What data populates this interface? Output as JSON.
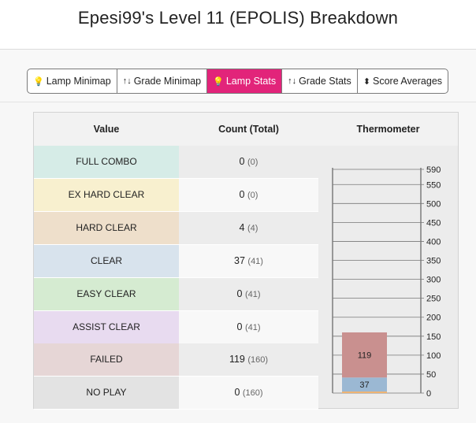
{
  "header": {
    "title": "Epesi99's Level 11 (EPOLIS) Breakdown"
  },
  "tabs": [
    {
      "icon": "💡",
      "label": "Lamp Minimap",
      "active": false
    },
    {
      "icon": "↑↓",
      "label": "Grade Minimap",
      "active": false
    },
    {
      "icon": "💡",
      "label": "Lamp Stats",
      "active": true
    },
    {
      "icon": "↑↓",
      "label": "Grade Stats",
      "active": false
    },
    {
      "icon": "⬍",
      "label": "Score Averages",
      "active": false
    }
  ],
  "table": {
    "headers": {
      "value": "Value",
      "count": "Count (Total)",
      "thermometer": "Thermometer"
    },
    "rows": [
      {
        "lamp": "FULL COMBO",
        "count": "0",
        "total": "(0)",
        "color": "#d6ece7",
        "count_bg": "#ececec"
      },
      {
        "lamp": "EX HARD CLEAR",
        "count": "0",
        "total": "(0)",
        "color": "#f8f0cf",
        "count_bg": "#f8f8f8"
      },
      {
        "lamp": "HARD CLEAR",
        "count": "4",
        "total": "(4)",
        "color": "#eedfcb",
        "count_bg": "#ececec"
      },
      {
        "lamp": "CLEAR",
        "count": "37",
        "total": "(41)",
        "color": "#d8e3ed",
        "count_bg": "#f8f8f8"
      },
      {
        "lamp": "EASY CLEAR",
        "count": "0",
        "total": "(41)",
        "color": "#d5ebd1",
        "count_bg": "#ececec"
      },
      {
        "lamp": "ASSIST CLEAR",
        "count": "0",
        "total": "(41)",
        "color": "#e8dbf0",
        "count_bg": "#f8f8f8"
      },
      {
        "lamp": "FAILED",
        "count": "119",
        "total": "(160)",
        "color": "#e6d6d6",
        "count_bg": "#ececec"
      },
      {
        "lamp": "NO PLAY",
        "count": "0",
        "total": "(160)",
        "color": "#e3e3e3",
        "count_bg": "#f8f8f8"
      }
    ]
  },
  "chart_data": {
    "type": "bar",
    "title": "",
    "xlabel": "",
    "ylabel": "",
    "ylim": [
      0,
      590
    ],
    "ticks": [
      0,
      50,
      100,
      150,
      200,
      250,
      300,
      350,
      400,
      450,
      500,
      550,
      590
    ],
    "tick_labels": [
      "0",
      "50",
      "100",
      "150",
      "200",
      "250",
      "300",
      "350",
      "400",
      "450",
      "500",
      "550",
      "590"
    ],
    "stack": [
      {
        "name": "HARD CLEAR",
        "value": 4,
        "label": "",
        "color": "#f0b26e"
      },
      {
        "name": "CLEAR",
        "value": 37,
        "label": "37",
        "color": "#9bb8d3"
      },
      {
        "name": "FAILED",
        "value": 119,
        "label": "119",
        "color": "#c9908f"
      }
    ]
  }
}
